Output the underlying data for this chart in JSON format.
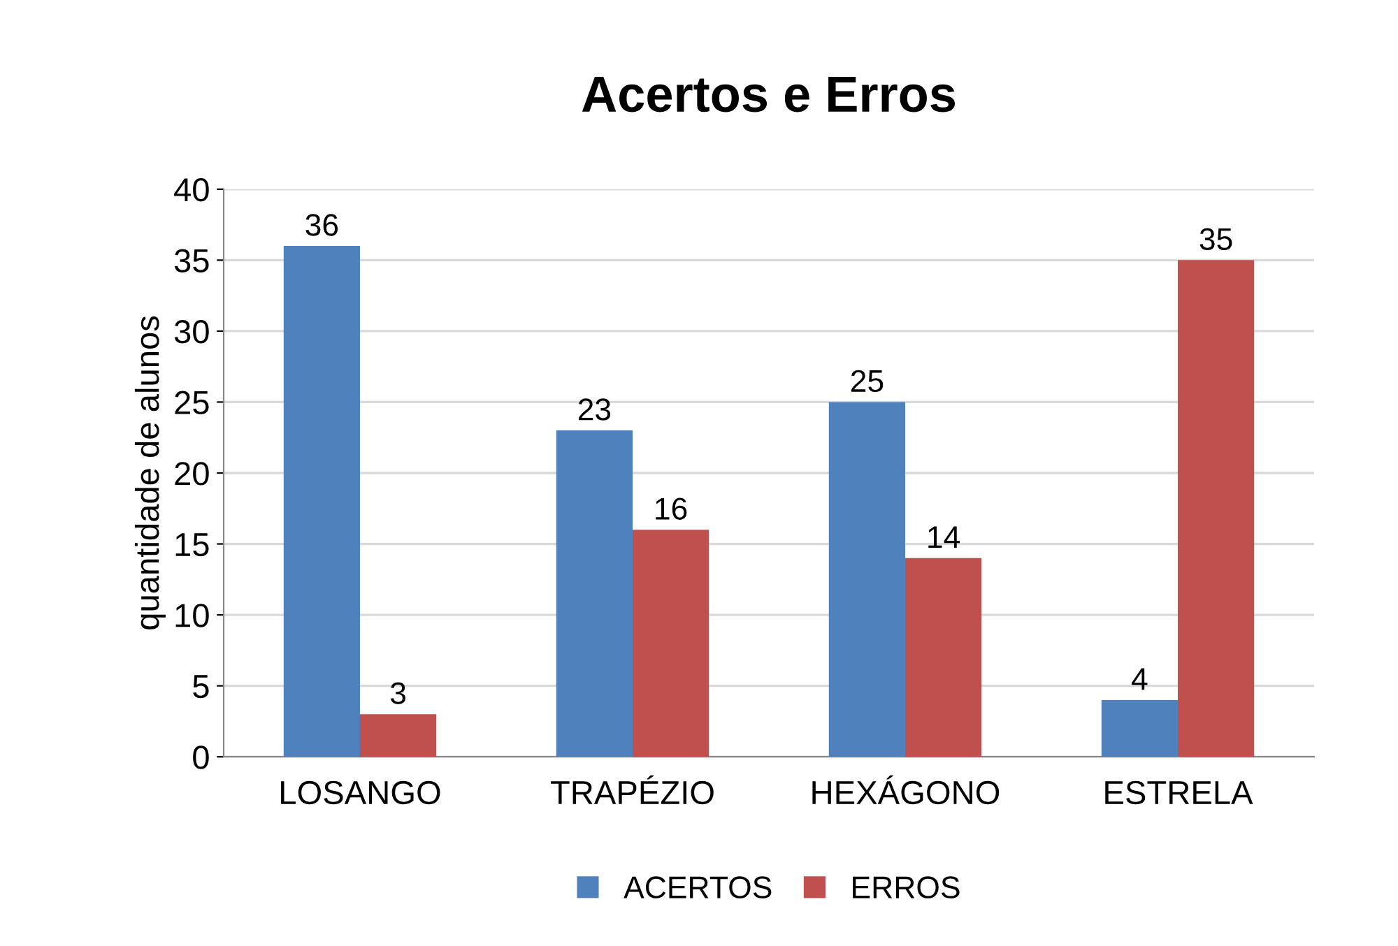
{
  "chart_data": {
    "type": "bar",
    "title": "Acertos e Erros",
    "ylabel": "quantidade de alunos",
    "categories": [
      "LOSANGO",
      "TRAPÉZIO",
      "HEXÁGONO",
      "ESTRELA"
    ],
    "series": [
      {
        "name": "ACERTOS",
        "color": "#4f81bd",
        "values": [
          36,
          23,
          25,
          4
        ]
      },
      {
        "name": "ERROS",
        "color": "#c0504d",
        "values": [
          3,
          16,
          14,
          35
        ]
      }
    ],
    "ylim": [
      0,
      40
    ],
    "yticks": [
      0,
      5,
      10,
      15,
      20,
      25,
      30,
      35,
      40
    ],
    "grid": "y",
    "legend": "bottom",
    "data_labels": true
  }
}
